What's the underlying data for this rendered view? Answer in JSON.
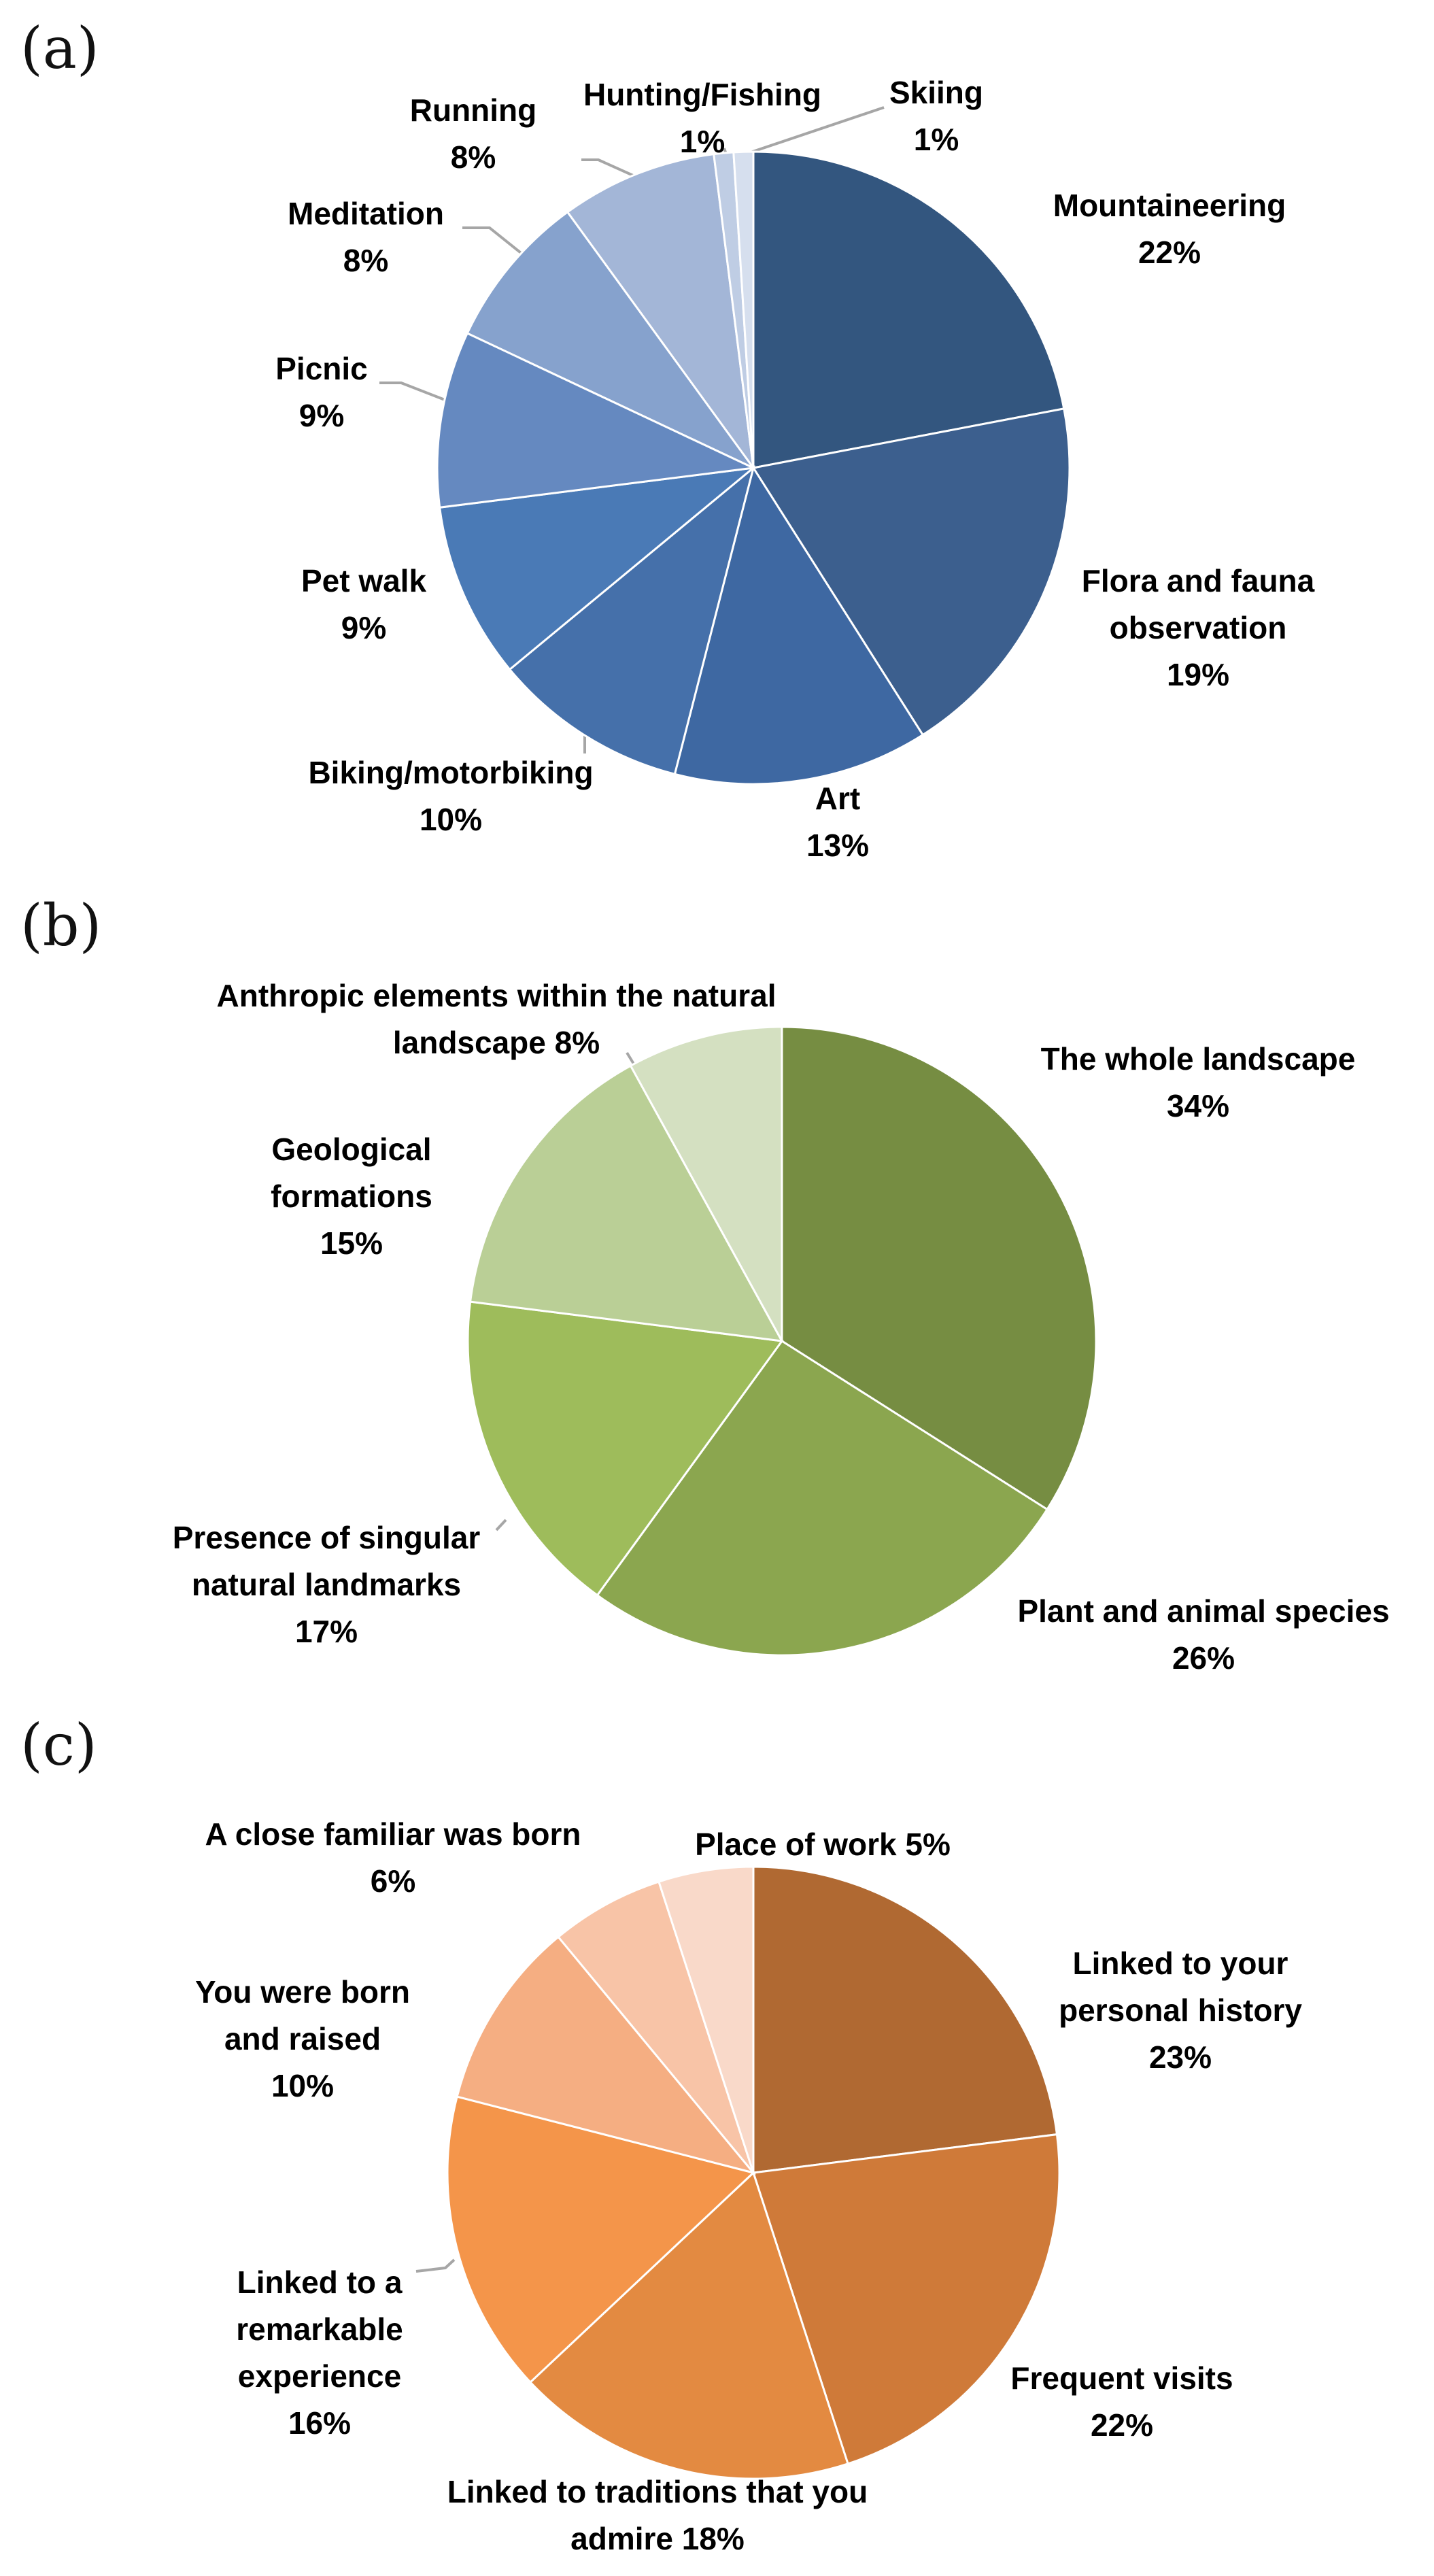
{
  "chart_data": [
    {
      "type": "pie",
      "panel_label": "(a)",
      "title": "",
      "slices": [
        {
          "label": "Mountaineering",
          "value": 22,
          "value_text": "22%",
          "color": "#33567F"
        },
        {
          "label": "Flora and fauna observation",
          "value": 19,
          "value_text": "19%",
          "color": "#3C5F8E"
        },
        {
          "label": "Art",
          "value": 13,
          "value_text": "13%",
          "color": "#3E68A2"
        },
        {
          "label": "Biking/motorbiking",
          "value": 10,
          "value_text": "10%",
          "color": "#4570AA"
        },
        {
          "label": "Pet walk",
          "value": 9,
          "value_text": "9%",
          "color": "#4A7AB6"
        },
        {
          "label": "Picnic",
          "value": 9,
          "value_text": "9%",
          "color": "#6589C0"
        },
        {
          "label": "Meditation",
          "value": 8,
          "value_text": "8%",
          "color": "#86A2CD"
        },
        {
          "label": "Running",
          "value": 8,
          "value_text": "8%",
          "color": "#A3B6D7"
        },
        {
          "label": "Hunting/Fishing",
          "value": 1,
          "value_text": "1%",
          "color": "#BFCDE4"
        },
        {
          "label": "Skiing",
          "value": 1,
          "value_text": "1%",
          "color": "#D6DFEE"
        }
      ]
    },
    {
      "type": "pie",
      "panel_label": "(b)",
      "title": "",
      "slices": [
        {
          "label": "The whole landscape",
          "value": 34,
          "value_text": "34%",
          "color": "#768D42"
        },
        {
          "label": "Plant and animal species",
          "value": 26,
          "value_text": "26%",
          "color": "#8BA64F"
        },
        {
          "label": "Presence of singular natural landmarks",
          "value": 17,
          "value_text": "17%",
          "color": "#9EBC5B"
        },
        {
          "label": "Geological formations",
          "value": 15,
          "value_text": "15%",
          "color": "#BACF96"
        },
        {
          "label": "Anthropic elements within the natural landscape",
          "value": 8,
          "value_text": "8%",
          "color": "#D4E0C1"
        }
      ]
    },
    {
      "type": "pie",
      "panel_label": "(c)",
      "title": "",
      "slices": [
        {
          "label": "Linked to your personal history",
          "value": 23,
          "value_text": "23%",
          "color": "#B06932"
        },
        {
          "label": "Frequent visits",
          "value": 22,
          "value_text": "22%",
          "color": "#CF7A39"
        },
        {
          "label": "Linked to traditions that you admire",
          "value": 18,
          "value_text": "18%",
          "color": "#E38A41"
        },
        {
          "label": "Linked to a remarkable experience",
          "value": 16,
          "value_text": "16%",
          "color": "#F4954A"
        },
        {
          "label": "You were born and raised",
          "value": 10,
          "value_text": "10%",
          "color": "#F5AE82"
        },
        {
          "label": "A close familiar was born",
          "value": 6,
          "value_text": "6%",
          "color": "#F8C4A7"
        },
        {
          "label": "Place of work",
          "value": 5,
          "value_text": "5%",
          "color": "#F9D9C9"
        }
      ]
    }
  ],
  "labels": {
    "a": [
      {
        "lines": [
          "Mountaineering",
          "22%"
        ]
      },
      {
        "lines": [
          "Flora and fauna",
          "observation",
          "19%"
        ]
      },
      {
        "lines": [
          "Art",
          "13%"
        ]
      },
      {
        "lines": [
          "Biking/motorbiking",
          "10%"
        ]
      },
      {
        "lines": [
          "Pet walk",
          "9%"
        ]
      },
      {
        "lines": [
          "Picnic",
          "9%"
        ]
      },
      {
        "lines": [
          "Meditation",
          "8%"
        ]
      },
      {
        "lines": [
          "Running",
          "8%"
        ]
      },
      {
        "lines": [
          "Hunting/Fishing",
          "1%"
        ]
      },
      {
        "lines": [
          "Skiing",
          "1%"
        ]
      }
    ],
    "b": [
      {
        "lines": [
          "The whole landscape",
          "34%"
        ]
      },
      {
        "lines": [
          "Plant and animal species",
          "26%"
        ]
      },
      {
        "lines": [
          "Presence of singular",
          "natural landmarks",
          "17%"
        ]
      },
      {
        "lines": [
          "Geological",
          "formations",
          "15%"
        ]
      },
      {
        "lines": [
          "Anthropic elements within the natural",
          "landscape 8%"
        ]
      }
    ],
    "c": [
      {
        "lines": [
          "Linked to your",
          "personal history",
          "23%"
        ]
      },
      {
        "lines": [
          "Frequent visits",
          "22%"
        ]
      },
      {
        "lines": [
          "Linked to traditions that you",
          "admire 18%"
        ]
      },
      {
        "lines": [
          "Linked to a",
          "remarkable",
          "experience",
          "16%"
        ]
      },
      {
        "lines": [
          "You were born",
          "and raised",
          "10%"
        ]
      },
      {
        "lines": [
          "A close familiar was born",
          "6%"
        ]
      },
      {
        "lines": [
          "Place of work 5%"
        ]
      }
    ]
  }
}
